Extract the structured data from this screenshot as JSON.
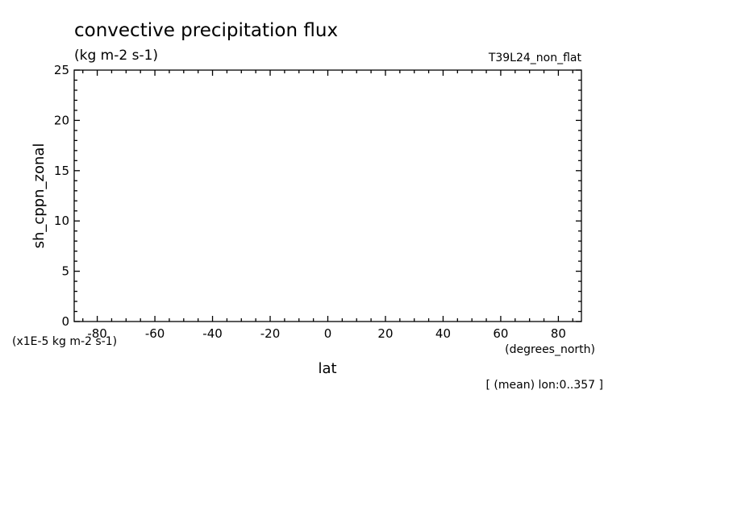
{
  "chart_data": {
    "type": "line",
    "title": "convective precipitation flux",
    "subtitle": "(kg m-2 s-1)",
    "run_label": "T39L24_non_flat",
    "ylabel": "sh_cppn_zonal",
    "xlabel": "lat",
    "x_units": "(degrees_north)",
    "y_scale_note": "(x1E-5 kg m-2 s-1)",
    "footnote": "[ (mean) lon:0..357 ]",
    "xlim": [
      -88,
      88
    ],
    "ylim": [
      0,
      25
    ],
    "x_ticks": [
      "-80",
      "-60",
      "-40",
      "-20",
      "0",
      "20",
      "40",
      "60",
      "80"
    ],
    "x_tick_values": [
      -80,
      -60,
      -40,
      -20,
      0,
      20,
      40,
      60,
      80
    ],
    "y_ticks": [
      "0",
      "5",
      "10",
      "15",
      "20",
      "25"
    ],
    "y_tick_values": [
      0,
      5,
      10,
      15,
      20,
      25
    ],
    "x_minor_step": 5,
    "y_minor_step": 1,
    "grid": false,
    "series": [
      {
        "values": []
      }
    ]
  }
}
